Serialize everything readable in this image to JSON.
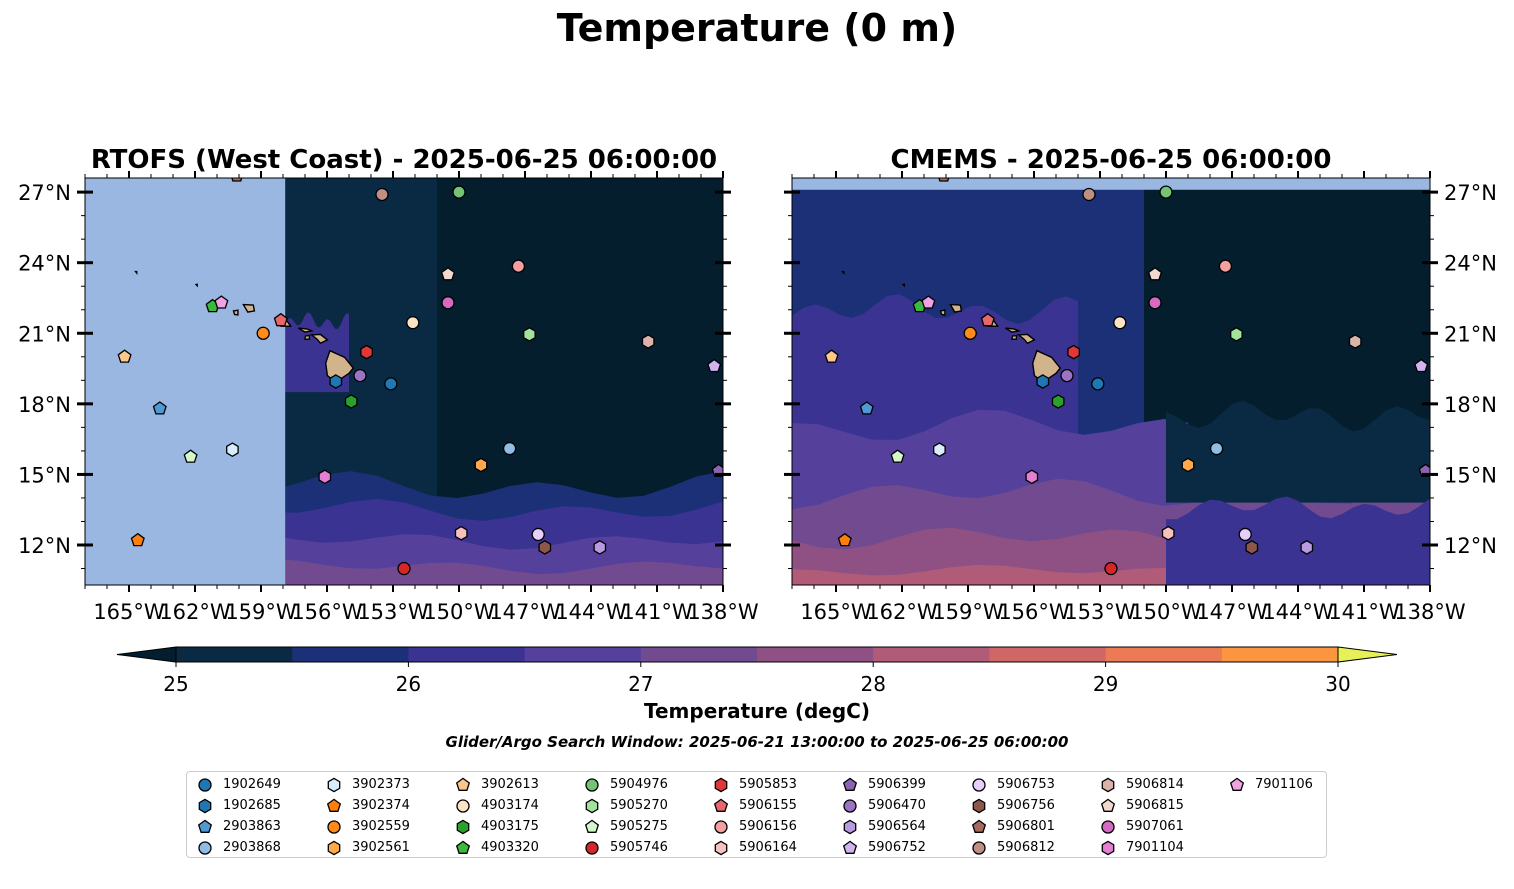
{
  "figure": {
    "suptitle": "Temperature (0 m)",
    "colorbar_label": "Temperature (degC)",
    "search_window": "Glider/Argo Search Window: 2025-06-21 13:00:00 to 2025-06-25 06:00:00"
  },
  "colors": {
    "levels": [
      "#041e2d",
      "#0a2a43",
      "#1c3078",
      "#3a3391",
      "#55409c",
      "#724a8f",
      "#8f5183",
      "#b05c79",
      "#cf6767",
      "#ec7b55",
      "#fb953f",
      "#fcba3b",
      "#e6f157"
    ],
    "land": "#d2b48c",
    "nodata": "#99b7e0"
  },
  "chart_data": [
    {
      "type": "heatmap",
      "title": "RTOFS (West Coast) - 2025-06-25 06:00:00",
      "xlim": [
        -167,
        -138
      ],
      "ylim": [
        10.3,
        27.6
      ],
      "xticks": [
        "165°W",
        "162°W",
        "159°W",
        "156°W",
        "153°W",
        "150°W",
        "147°W",
        "144°W",
        "141°W",
        "138°W"
      ],
      "xtick_values": [
        -165,
        -162,
        -159,
        -156,
        -153,
        -150,
        -147,
        -144,
        -141,
        -138
      ],
      "yticks": [
        "12°N",
        "15°N",
        "18°N",
        "21°N",
        "24°N",
        "27°N"
      ],
      "ytick_values": [
        12,
        15,
        18,
        21,
        24,
        27
      ],
      "data_west_limit": -157.9,
      "colorbar": {
        "min": 25,
        "max": 30,
        "ticks": [
          25,
          26,
          27,
          28,
          29,
          30
        ],
        "extend": "both"
      }
    },
    {
      "type": "heatmap",
      "title": "CMEMS - 2025-06-25 06:00:00",
      "xlim": [
        -167,
        -138
      ],
      "ylim": [
        10.3,
        27.6
      ],
      "xticks": [
        "165°W",
        "162°W",
        "159°W",
        "156°W",
        "153°W",
        "150°W",
        "147°W",
        "144°W",
        "141°W",
        "138°W"
      ],
      "xtick_values": [
        -165,
        -162,
        -159,
        -156,
        -153,
        -150,
        -147,
        -144,
        -141,
        -138
      ],
      "yticks": [
        "12°N",
        "15°N",
        "18°N",
        "21°N",
        "24°N",
        "27°N"
      ],
      "ytick_values": [
        12,
        15,
        18,
        21,
        24,
        27
      ],
      "data_north_limit": 27.1
    }
  ],
  "platforms": [
    {
      "id": "1902649",
      "color": "#1f77b4",
      "marker": "circle",
      "lon": -153.1,
      "lat": 18.85
    },
    {
      "id": "1902685",
      "color": "#1f77b4",
      "marker": "hexagon",
      "lon": -155.6,
      "lat": 18.95
    },
    {
      "id": "2903863",
      "color": "#4f9ad4",
      "marker": "pentagon",
      "lon": -163.6,
      "lat": 17.8
    },
    {
      "id": "2903868",
      "color": "#8fbde6",
      "marker": "circle",
      "lon": -147.7,
      "lat": 16.1
    },
    {
      "id": "3902373",
      "color": "#d9ecfb",
      "marker": "hexagon",
      "lon": -160.3,
      "lat": 16.05
    },
    {
      "id": "3902374",
      "color": "#ff7f0e",
      "marker": "pentagon",
      "lon": -164.6,
      "lat": 12.2
    },
    {
      "id": "3902559",
      "color": "#ff8c1a",
      "marker": "circle",
      "lon": -158.9,
      "lat": 21.0
    },
    {
      "id": "3902561",
      "color": "#ffa94d",
      "marker": "hexagon",
      "lon": -149.0,
      "lat": 15.4
    },
    {
      "id": "3902613",
      "color": "#fdc68c",
      "marker": "pentagon",
      "lon": -165.2,
      "lat": 20.0
    },
    {
      "id": "4903174",
      "color": "#fde3c6",
      "marker": "circle",
      "lon": -152.1,
      "lat": 21.45
    },
    {
      "id": "4903175",
      "color": "#2ca02c",
      "marker": "hexagon",
      "lon": -154.9,
      "lat": 18.1
    },
    {
      "id": "4903320",
      "color": "#3cb83c",
      "marker": "pentagon",
      "lon": -161.2,
      "lat": 22.15
    },
    {
      "id": "5904976",
      "color": "#74c476",
      "marker": "circle",
      "lon": -150.0,
      "lat": 27.0
    },
    {
      "id": "5905270",
      "color": "#a1e39a",
      "marker": "hexagon",
      "lon": -146.8,
      "lat": 20.95
    },
    {
      "id": "5905275",
      "color": "#d4f7cc",
      "marker": "pentagon",
      "lon": -162.2,
      "lat": 15.75
    },
    {
      "id": "5905746",
      "color": "#d62728",
      "marker": "circle",
      "lon": -152.5,
      "lat": 11.0
    },
    {
      "id": "5905853",
      "color": "#e03838",
      "marker": "hexagon",
      "lon": -154.2,
      "lat": 20.2
    },
    {
      "id": "5906155",
      "color": "#e8676a",
      "marker": "pentagon",
      "lon": -158.1,
      "lat": 21.55
    },
    {
      "id": "5906156",
      "color": "#f4a0a0",
      "marker": "circle",
      "lon": -147.3,
      "lat": 23.85
    },
    {
      "id": "5906164",
      "color": "#f6c1bf",
      "marker": "hexagon",
      "lon": -149.9,
      "lat": 12.5
    },
    {
      "id": "5906399",
      "color": "#8b63b0",
      "marker": "pentagon",
      "lon": -138.2,
      "lat": 15.15
    },
    {
      "id": "5906470",
      "color": "#9c74c4",
      "marker": "circle",
      "lon": -154.5,
      "lat": 19.2
    },
    {
      "id": "5906564",
      "color": "#b89ae0",
      "marker": "hexagon",
      "lon": -143.6,
      "lat": 11.9
    },
    {
      "id": "5906752",
      "color": "#d2b3f0",
      "marker": "pentagon",
      "lon": -138.4,
      "lat": 19.6
    },
    {
      "id": "5906753",
      "color": "#e6cffa",
      "marker": "circle",
      "lon": -146.4,
      "lat": 12.45
    },
    {
      "id": "5906756",
      "color": "#8c564b",
      "marker": "hexagon",
      "lon": -146.1,
      "lat": 11.9
    },
    {
      "id": "5906801",
      "color": "#a36b5e",
      "marker": "pentagon",
      "lon": -160.1,
      "lat": 27.7
    },
    {
      "id": "5906812",
      "color": "#c08f84",
      "marker": "circle",
      "lon": -153.5,
      "lat": 26.9
    },
    {
      "id": "5906814",
      "color": "#dab4aa",
      "marker": "hexagon",
      "lon": -141.4,
      "lat": 20.65
    },
    {
      "id": "5906815",
      "color": "#f2d9d0",
      "marker": "pentagon",
      "lon": -150.5,
      "lat": 23.5
    },
    {
      "id": "5907061",
      "color": "#d66ac0",
      "marker": "circle",
      "lon": -150.5,
      "lat": 22.3
    },
    {
      "id": "7901104",
      "color": "#e57fd1",
      "marker": "hexagon",
      "lon": -156.1,
      "lat": 14.9
    },
    {
      "id": "7901106",
      "color": "#f0a3e3",
      "marker": "pentagon",
      "lon": -160.8,
      "lat": 22.3
    }
  ]
}
